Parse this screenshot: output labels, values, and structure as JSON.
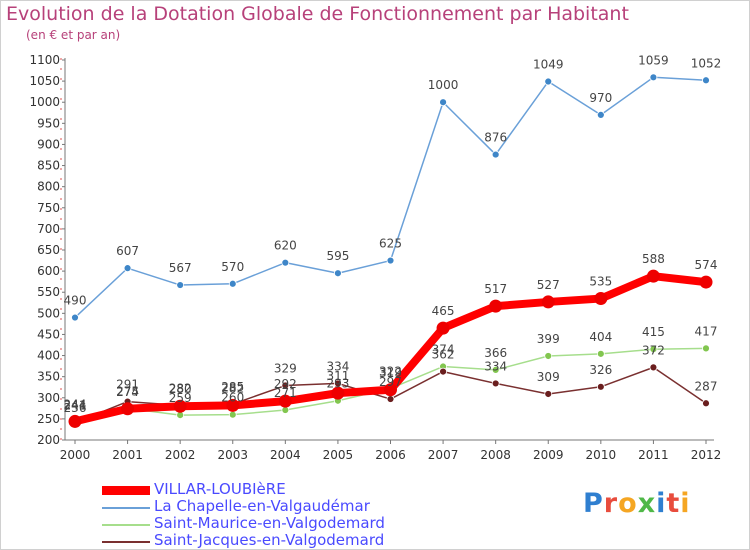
{
  "chart_data": {
    "type": "line",
    "title": "Evolution de la Dotation Globale de Fonctionnement par Habitant",
    "subtitle": "(en € et par an)",
    "xlabel": "",
    "ylabel": "",
    "categories": [
      "2000",
      "2001",
      "2002",
      "2003",
      "2004",
      "2005",
      "2006",
      "2007",
      "2008",
      "2009",
      "2010",
      "2011",
      "2012"
    ],
    "ylim": [
      200,
      1100
    ],
    "yticks": [
      200,
      250,
      300,
      350,
      400,
      450,
      500,
      550,
      600,
      650,
      700,
      750,
      800,
      850,
      900,
      950,
      1000,
      1050,
      1100
    ],
    "grid": false,
    "legend_position": "bottom-left",
    "series": [
      {
        "name": "La Chapelle-en-Valgaudémar",
        "color": "#6aa0d8",
        "marker": "#3e86c8",
        "values": [
          490,
          607,
          567,
          570,
          620,
          595,
          625,
          1000,
          876,
          1049,
          970,
          1059,
          1052
        ]
      },
      {
        "name": "Saint-Maurice-en-Valgodemard",
        "color": "#a6de8c",
        "marker": "#82c64f",
        "values": [
          236,
          275,
          259,
          260,
          271,
          293,
          322,
          374,
          366,
          399,
          404,
          415,
          417
        ]
      },
      {
        "name": "Saint-Jacques-en-Valgodemard",
        "color": "#7a3030",
        "marker": "#6a1e1e",
        "values": [
          241,
          291,
          282,
          285,
          329,
          334,
          297,
          362,
          334,
          309,
          326,
          372,
          287
        ]
      },
      {
        "name": "VILLAR-LOUBIèRE",
        "color": "#ff0000",
        "marker": "#ee0000",
        "values": [
          244,
          274,
          280,
          282,
          292,
          311,
          319,
          465,
          517,
          527,
          535,
          588,
          574
        ]
      }
    ]
  },
  "legend": {
    "items": [
      {
        "label": "VILLAR-LOUBIèRE",
        "color": "#ff0000"
      },
      {
        "label": "La Chapelle-en-Valgaudémar",
        "color": "#6aa0d8"
      },
      {
        "label": "Saint-Maurice-en-Valgodemard",
        "color": "#a6de8c"
      },
      {
        "label": "Saint-Jacques-en-Valgodemard",
        "color": "#7a3030"
      }
    ]
  },
  "logo": {
    "letters": [
      "P",
      "r",
      "o",
      "x",
      "i",
      "t",
      "i"
    ],
    "colors": [
      "#2f7fd0",
      "#e84c3d",
      "#f5a623",
      "#4fb848",
      "#2f7fd0",
      "#e84c3d",
      "#f5a623"
    ]
  }
}
